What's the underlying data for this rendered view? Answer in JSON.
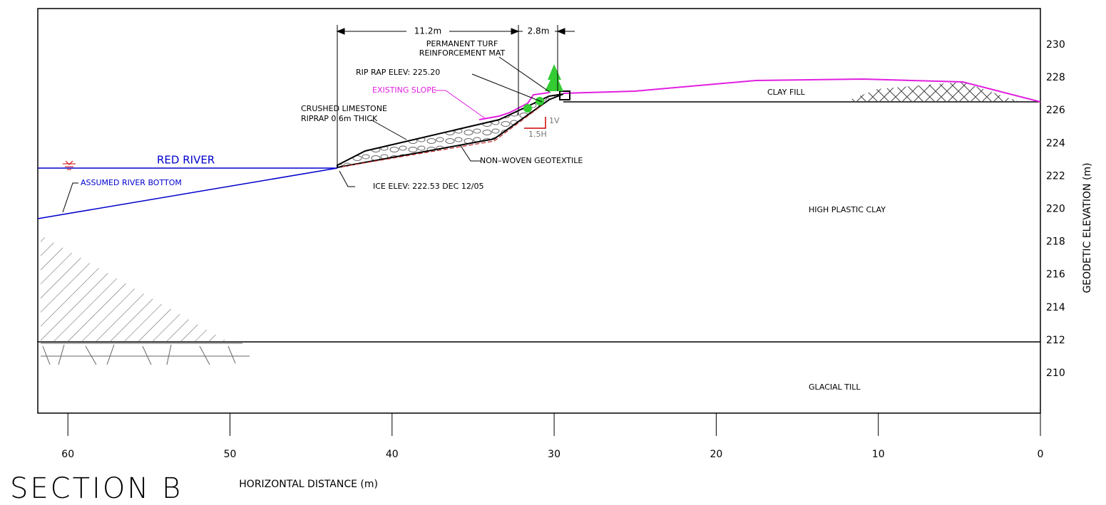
{
  "title": "SECTION B",
  "x_axis": {
    "label": "HORIZONTAL DISTANCE (m)",
    "ticks": [
      60,
      50,
      40,
      30,
      20,
      10,
      0
    ]
  },
  "y_axis": {
    "label": "GEODETIC ELEVATION (m)",
    "ticks": [
      230,
      228,
      226,
      224,
      222,
      220,
      218,
      216,
      214,
      212,
      210
    ]
  },
  "annotations": {
    "dim_left": "11.2m",
    "dim_right": "2.8m",
    "turf_mat": [
      "PERMANENT TURF",
      "REINFORCEMENT MAT"
    ],
    "riprap_elev": "RIP RAP ELEV: 225.20",
    "existing_slope": "EXISTING SLOPE",
    "riprap": [
      "CRUSHED LIMESTONE",
      "RIPRAP 0.6m THICK"
    ],
    "slope_v": "1V",
    "slope_h": "1.5H",
    "river": "RED RIVER",
    "river_bottom": "ASSUMED RIVER BOTTOM",
    "geotextile": "NON–WOVEN GEOTEXTILE",
    "ice_elev": "ICE  ELEV: 222.53 DEC 12/05",
    "clay_fill": "CLAY FILL",
    "high_clay": "HIGH PLASTIC CLAY",
    "glacial_till": "GLACIAL TILL"
  }
}
